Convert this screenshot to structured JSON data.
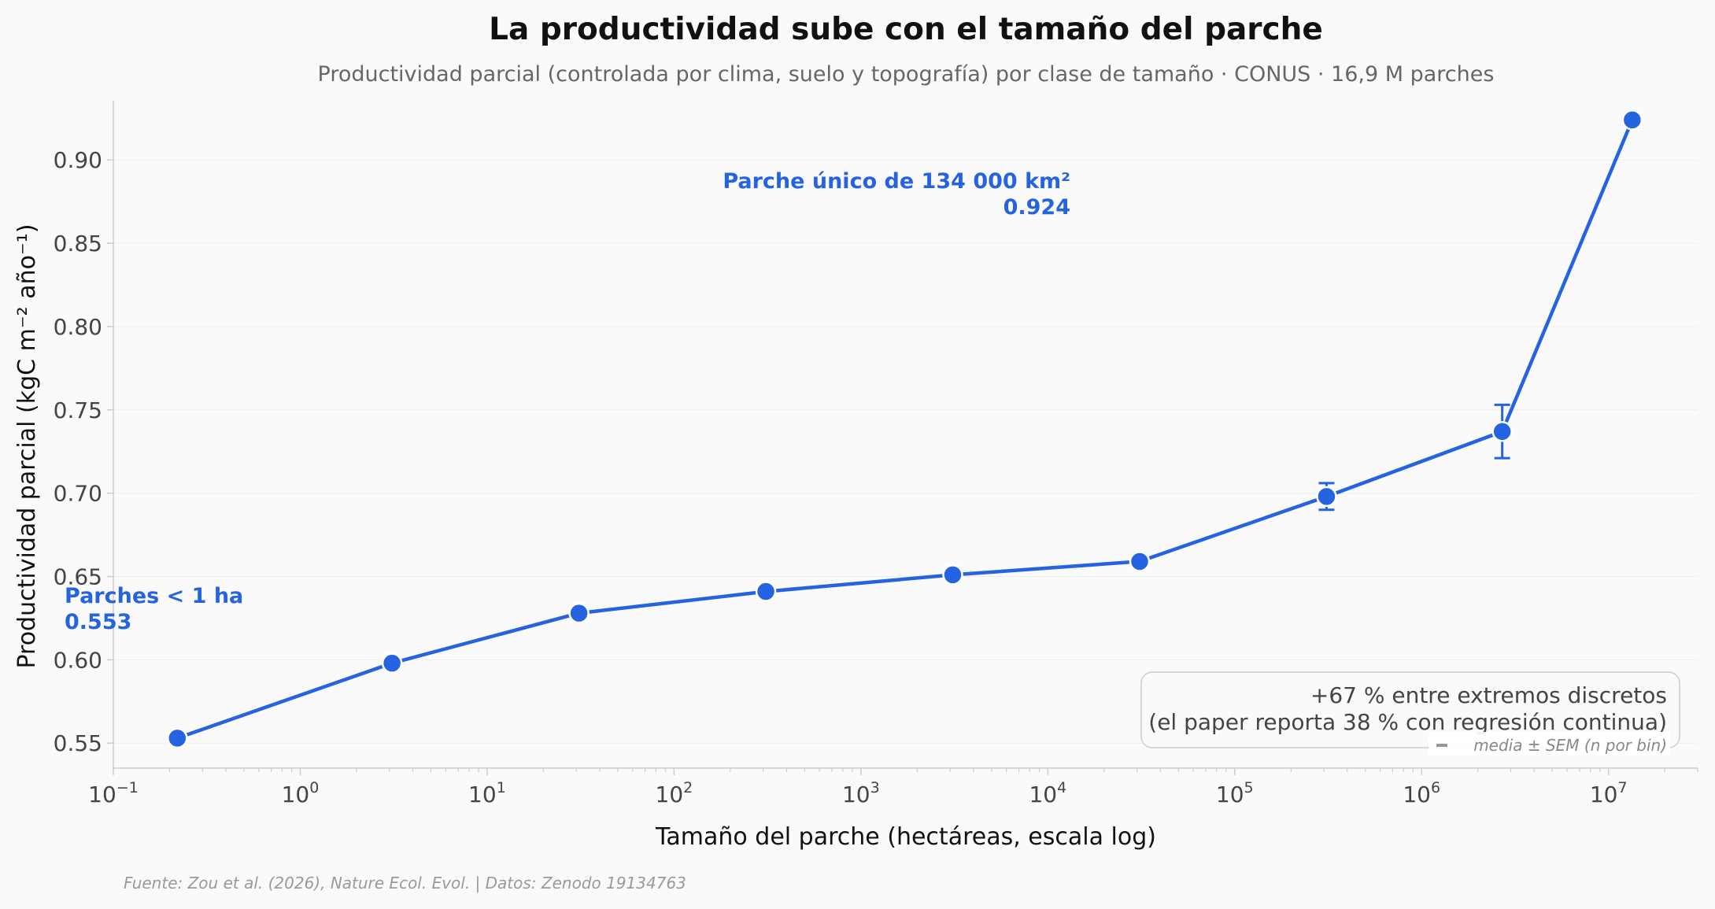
{
  "colors": {
    "line": "#2563e0",
    "annotation": "#2563e0",
    "background": "#fafafa",
    "grid": "#eeeeee",
    "axis": "#cccccc"
  },
  "chart_data": {
    "type": "line",
    "title": "La productividad sube con el tamaño del parche",
    "subtitle": "Productividad parcial (controlada por clima, suelo y topografía) por clase de tamaño · CONUS · 16,9 M parches",
    "xlabel": "Tamaño del parche (hectáreas, escala log)",
    "ylabel": "Productividad parcial (kgC m⁻² año⁻¹)",
    "x_scale": "log",
    "xlim": [
      0.1,
      30000000
    ],
    "ylim": [
      0.535,
      0.9355
    ],
    "grid": "horizontal",
    "x_ticks": [
      {
        "value": 0.1,
        "base": "10",
        "exp": "−1"
      },
      {
        "value": 1,
        "base": "10",
        "exp": "0"
      },
      {
        "value": 10,
        "base": "10",
        "exp": "1"
      },
      {
        "value": 100,
        "base": "10",
        "exp": "2"
      },
      {
        "value": 1000,
        "base": "10",
        "exp": "3"
      },
      {
        "value": 10000,
        "base": "10",
        "exp": "4"
      },
      {
        "value": 100000,
        "base": "10",
        "exp": "5"
      },
      {
        "value": 1000000,
        "base": "10",
        "exp": "6"
      },
      {
        "value": 10000000,
        "base": "10",
        "exp": "7"
      }
    ],
    "y_ticks": [
      "0.55",
      "0.60",
      "0.65",
      "0.70",
      "0.75",
      "0.80",
      "0.85",
      "0.90"
    ],
    "series": [
      {
        "points": [
          {
            "x": 0.22,
            "y": 0.553,
            "sem": 0
          },
          {
            "x": 3.1,
            "y": 0.598,
            "sem": 0
          },
          {
            "x": 31,
            "y": 0.628,
            "sem": 0
          },
          {
            "x": 310,
            "y": 0.641,
            "sem": 0
          },
          {
            "x": 3100,
            "y": 0.651,
            "sem": 0
          },
          {
            "x": 31000,
            "y": 0.659,
            "sem": 0
          },
          {
            "x": 310000,
            "y": 0.698,
            "sem": 0.008
          },
          {
            "x": 2700000,
            "y": 0.737,
            "sem": 0.016
          },
          {
            "x": 13400000,
            "y": 0.924,
            "sem": 0
          }
        ]
      }
    ],
    "annotations": [
      {
        "lines": [
          "Parches < 1 ha",
          "0.553"
        ],
        "position": "left, near first point",
        "align": "start"
      },
      {
        "lines": [
          "Parche único de 134 000 km²",
          "0.924"
        ],
        "position": "upper-center, left of last point",
        "align": "end"
      }
    ],
    "note_box": {
      "lines": [
        "+67 % entre extremos discretos",
        "(el paper reporta 38 % con regresión continua)"
      ],
      "placement": "bottom-right"
    },
    "legend": {
      "label": "media ± SEM (n por bin)",
      "placement": "bottom-right"
    },
    "source": "Fuente: Zou et al. (2026), Nature Ecol. Evol. | Datos: Zenodo 19134763"
  }
}
